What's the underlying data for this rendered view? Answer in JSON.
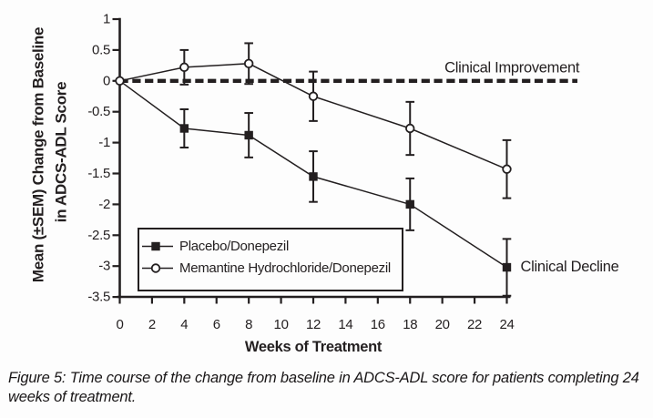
{
  "figure": {
    "caption": "Figure 5: Time course of the change from baseline in ADCS-ADL score for patients completing 24 weeks of treatment.",
    "caption_lines": [
      "Figure 5: Time course of the change from baseline in ADCS-ADL score for patients completing 24",
      "weeks of treatment."
    ]
  },
  "chart_data": {
    "type": "line",
    "title": "",
    "xlabel": "Weeks of Treatment",
    "ylabel_line1": "Mean (±SEM) Change from Baseline",
    "ylabel_line2": "in ADCS-ADL Score",
    "xlim": [
      0,
      24
    ],
    "ylim": [
      -3.5,
      1
    ],
    "grid": false,
    "x_ticks": [
      "0",
      "2",
      "4",
      "6",
      "8",
      "10",
      "12",
      "14",
      "16",
      "18",
      "20",
      "22",
      "24"
    ],
    "y_ticks": [
      "1",
      "0.5",
      "0",
      "-0.5",
      "-1",
      "-1.5",
      "-2",
      "-2.5",
      "-3",
      "-3.5"
    ],
    "reference_line": {
      "value": 0,
      "style": "dashed",
      "label": "Clinical Improvement",
      "label_week": 28.5,
      "label_value": 0.21
    },
    "annotations": [
      {
        "text": "Clinical Decline",
        "week": 24.85,
        "value": -3.01
      }
    ],
    "legend_position": "lower-left-inside",
    "series": [
      {
        "name": "Placebo/Donepezil",
        "marker": "filled-square",
        "show_first_marker": false,
        "x": [
          0,
          4,
          8,
          12,
          18,
          24
        ],
        "y": [
          0,
          -0.77,
          -0.88,
          -1.55,
          -2.0,
          -3.02
        ],
        "sem": [
          0,
          0.31,
          0.36,
          0.41,
          0.42,
          0.46
        ]
      },
      {
        "name": "Memantine Hydrochloride/Donepezil",
        "marker": "open-circle",
        "show_first_marker": true,
        "x": [
          0,
          4,
          8,
          12,
          18,
          24
        ],
        "y": [
          0,
          0.22,
          0.28,
          -0.25,
          -0.77,
          -1.43
        ],
        "sem": [
          0,
          0.28,
          0.33,
          0.4,
          0.43,
          0.47
        ]
      }
    ]
  },
  "colors": {
    "ink": "#231f20",
    "paper": "#ffffff"
  }
}
